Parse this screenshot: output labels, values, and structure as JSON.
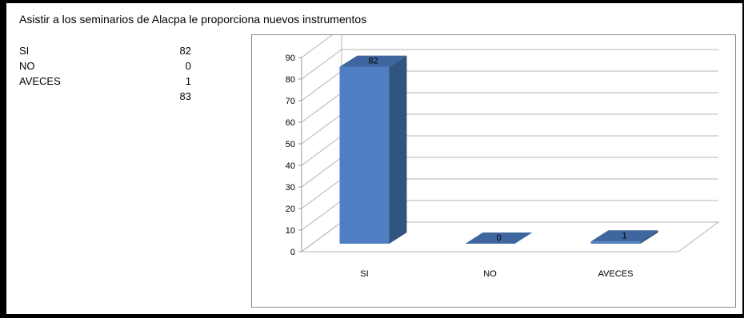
{
  "title": "Asistir a los seminarios de Alacpa le proporciona nuevos instrumentos",
  "summary": {
    "rows": [
      {
        "label": "SI",
        "value": "82"
      },
      {
        "label": "NO",
        "value": "0"
      },
      {
        "label": "AVECES",
        "value": "1"
      },
      {
        "label": "",
        "value": "83"
      }
    ]
  },
  "chart_data": {
    "type": "bar",
    "title": "",
    "xlabel": "",
    "ylabel": "",
    "categories": [
      "SI",
      "NO",
      "AVECES"
    ],
    "values": [
      82,
      0,
      1
    ],
    "data_labels": [
      "82",
      "0",
      "1"
    ],
    "ylim": [
      0,
      90
    ],
    "yticks": [
      0,
      10,
      20,
      30,
      40,
      50,
      60,
      70,
      80,
      90
    ],
    "grid": true,
    "three_d": true,
    "legend": "none",
    "colors": {
      "front": "#4f7fc2",
      "side": "#32557f",
      "top": "#3f669f",
      "grid": "#b4b4b4"
    }
  }
}
